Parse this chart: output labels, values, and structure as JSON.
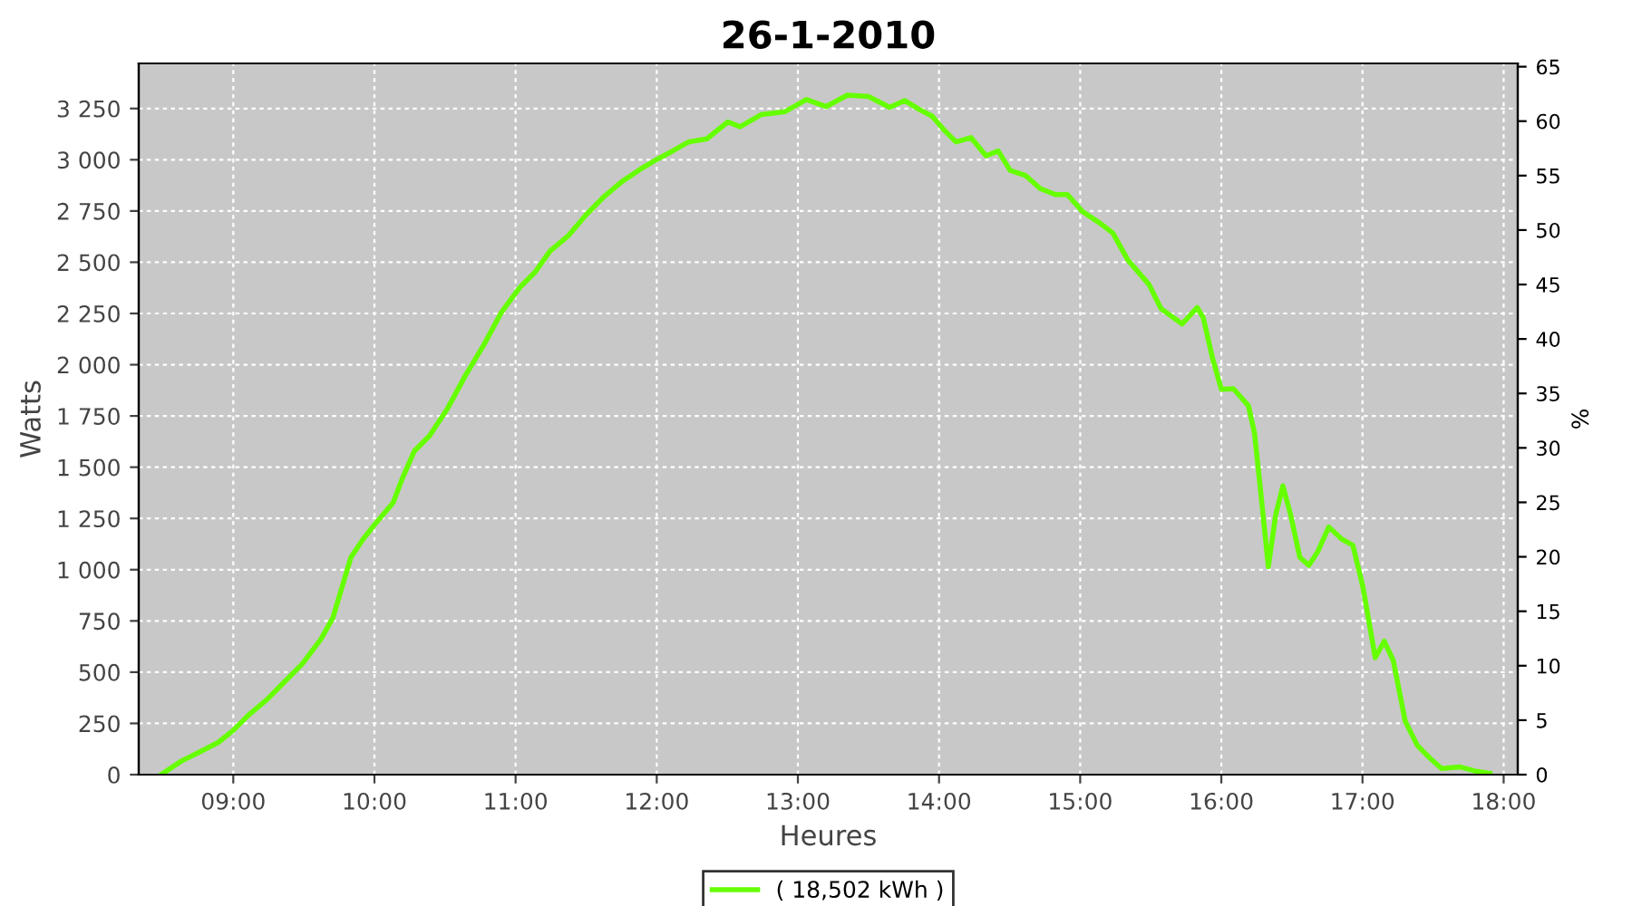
{
  "chart_data": {
    "type": "line",
    "title": "26-1-2010",
    "xlabel": "Heures",
    "ylabel": "Watts",
    "y2label": "%",
    "x": [
      8.487,
      8.637,
      8.765,
      8.893,
      9.0,
      9.107,
      9.235,
      9.363,
      9.491,
      9.62,
      9.705,
      9.769,
      9.833,
      9.919,
      10.004,
      10.132,
      10.197,
      10.282,
      10.389,
      10.517,
      10.645,
      10.774,
      10.902,
      11.03,
      11.137,
      11.244,
      11.372,
      11.5,
      11.628,
      11.756,
      11.885,
      11.991,
      12.098,
      12.226,
      12.355,
      12.504,
      12.59,
      12.739,
      12.91,
      13.06,
      13.2,
      13.35,
      13.5,
      13.65,
      13.756,
      13.863,
      13.949,
      14.034,
      14.12,
      14.226,
      14.333,
      14.419,
      14.504,
      14.611,
      14.718,
      14.825,
      14.91,
      15.017,
      15.145,
      15.231,
      15.338,
      15.487,
      15.573,
      15.722,
      15.829,
      15.872,
      15.936,
      16.0,
      16.085,
      16.192,
      16.235,
      16.278,
      16.333,
      16.385,
      16.436,
      16.491,
      16.556,
      16.62,
      16.684,
      16.761,
      16.855,
      16.932,
      17.004,
      17.09,
      17.154,
      17.218,
      17.303,
      17.389,
      17.474,
      17.56,
      17.688,
      17.795,
      17.902
    ],
    "series": [
      {
        "name": "( 18,502 kWh )",
        "color": "#66ff00",
        "values": [
          0,
          68,
          112,
          157,
          216,
          290,
          364,
          453,
          542,
          660,
          764,
          912,
          1060,
          1148,
          1222,
          1326,
          1444,
          1578,
          1652,
          1785,
          1948,
          2096,
          2258,
          2377,
          2451,
          2554,
          2628,
          2732,
          2821,
          2895,
          2954,
          2998,
          3037,
          3087,
          3102,
          3185,
          3161,
          3220,
          3235,
          3294,
          3259,
          3315,
          3309,
          3256,
          3289,
          3244,
          3214,
          3146,
          3087,
          3108,
          3019,
          3043,
          2948,
          2924,
          2859,
          2830,
          2830,
          2747,
          2688,
          2643,
          2510,
          2392,
          2273,
          2199,
          2279,
          2229,
          2036,
          1880,
          1883,
          1800,
          1666,
          1385,
          1015,
          1267,
          1409,
          1267,
          1060,
          1021,
          1089,
          1208,
          1148,
          1119,
          912,
          571,
          651,
          557,
          260,
          142,
          83,
          30,
          38,
          18,
          6
        ]
      }
    ],
    "xlim": [
      8.33,
      18.1
    ],
    "xticks": [
      {
        "value": 9,
        "label": "09:00"
      },
      {
        "value": 10,
        "label": "10:00"
      },
      {
        "value": 11,
        "label": "11:00"
      },
      {
        "value": 12,
        "label": "12:00"
      },
      {
        "value": 13,
        "label": "13:00"
      },
      {
        "value": 14,
        "label": "14:00"
      },
      {
        "value": 15,
        "label": "15:00"
      },
      {
        "value": 16,
        "label": "16:00"
      },
      {
        "value": 17,
        "label": "17:00"
      },
      {
        "value": 18,
        "label": "18:00"
      }
    ],
    "ylim": [
      0,
      3470
    ],
    "yticks": [
      {
        "value": 0,
        "label": "0"
      },
      {
        "value": 250,
        "label": "250"
      },
      {
        "value": 500,
        "label": "500"
      },
      {
        "value": 750,
        "label": "750"
      },
      {
        "value": 1000,
        "label": "1 000"
      },
      {
        "value": 1250,
        "label": "1 250"
      },
      {
        "value": 1500,
        "label": "1 500"
      },
      {
        "value": 1750,
        "label": "1 750"
      },
      {
        "value": 2000,
        "label": "2 000"
      },
      {
        "value": 2250,
        "label": "2 250"
      },
      {
        "value": 2500,
        "label": "2 500"
      },
      {
        "value": 2750,
        "label": "2 750"
      },
      {
        "value": 3000,
        "label": "3 000"
      },
      {
        "value": 3250,
        "label": "3 250"
      }
    ],
    "y2lim": [
      0,
      65.3
    ],
    "y2ticks": [
      0,
      5,
      10,
      15,
      20,
      25,
      30,
      35,
      40,
      45,
      50,
      55,
      60,
      65
    ],
    "grid": true,
    "legend": "bottom",
    "marker": "none",
    "line_style": "solid"
  }
}
